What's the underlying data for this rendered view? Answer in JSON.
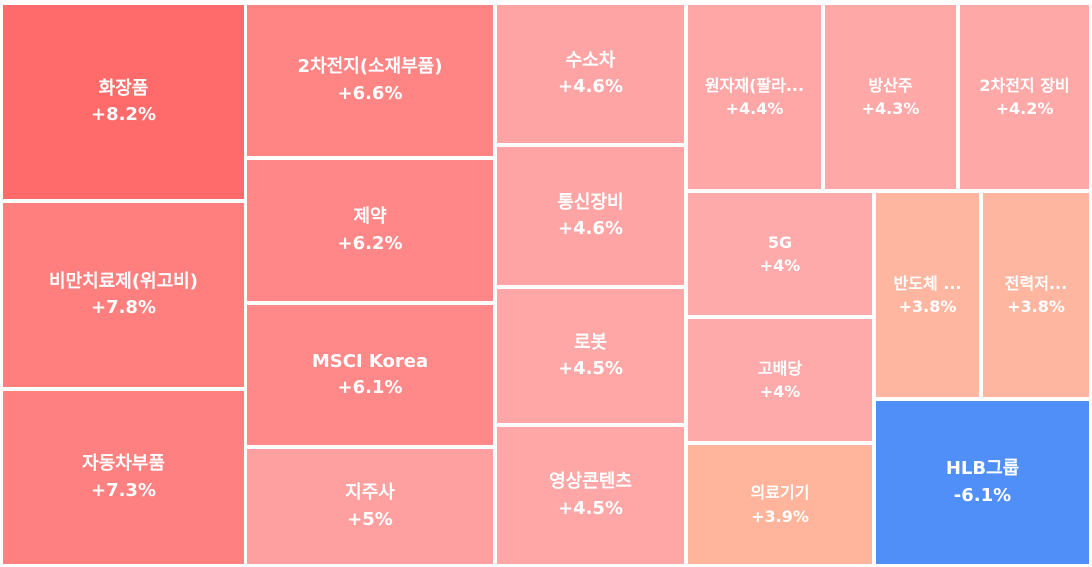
{
  "chart_data": {
    "type": "treemap",
    "tiles": [
      {
        "name": "화장품",
        "change": "+8.2%",
        "value": 8.2,
        "color": "#ff6a6a"
      },
      {
        "name": "비만치료제(위고비)",
        "change": "+7.8%",
        "value": 7.8,
        "color": "#ff7f7f"
      },
      {
        "name": "자동차부품",
        "change": "+7.3%",
        "value": 7.3,
        "color": "#ff8080"
      },
      {
        "name": "2차전지(소재부품)",
        "change": "+6.6%",
        "value": 6.6,
        "color": "#ff8585"
      },
      {
        "name": "제약",
        "change": "+6.2%",
        "value": 6.2,
        "color": "#ff8787"
      },
      {
        "name": "MSCI Korea",
        "change": "+6.1%",
        "value": 6.1,
        "color": "#ff8888"
      },
      {
        "name": "지주사",
        "change": "+5%",
        "value": 5.0,
        "color": "#ffa0a0"
      },
      {
        "name": "수소차",
        "change": "+4.6%",
        "value": 4.6,
        "color": "#ffa4a4"
      },
      {
        "name": "통신장비",
        "change": "+4.6%",
        "value": 4.6,
        "color": "#ffa4a4"
      },
      {
        "name": "로봇",
        "change": "+4.5%",
        "value": 4.5,
        "color": "#ffa6a6"
      },
      {
        "name": "영상콘텐츠",
        "change": "+4.5%",
        "value": 4.5,
        "color": "#ffa6a6"
      },
      {
        "name": "원자재(팔라...",
        "change": "+4.4%",
        "value": 4.4,
        "color": "#ffa7a7"
      },
      {
        "name": "방산주",
        "change": "+4.3%",
        "value": 4.3,
        "color": "#ffa8a8"
      },
      {
        "name": "2차전지 장비",
        "change": "+4.2%",
        "value": 4.2,
        "color": "#ffa8a8"
      },
      {
        "name": "5G",
        "change": "+4%",
        "value": 4.0,
        "color": "#ffaaaa"
      },
      {
        "name": "고배당",
        "change": "+4%",
        "value": 4.0,
        "color": "#ffaaaa"
      },
      {
        "name": "의료기기",
        "change": "+3.9%",
        "value": 3.9,
        "color": "#ffb49b"
      },
      {
        "name": "반도체 ...",
        "change": "+3.8%",
        "value": 3.8,
        "color": "#ffb6a0"
      },
      {
        "name": "전력저...",
        "change": "+3.8%",
        "value": 3.8,
        "color": "#ffb6a0"
      },
      {
        "name": "HLB그룹",
        "change": "-6.1%",
        "value": -6.1,
        "color": "#4f8ff7"
      }
    ]
  }
}
